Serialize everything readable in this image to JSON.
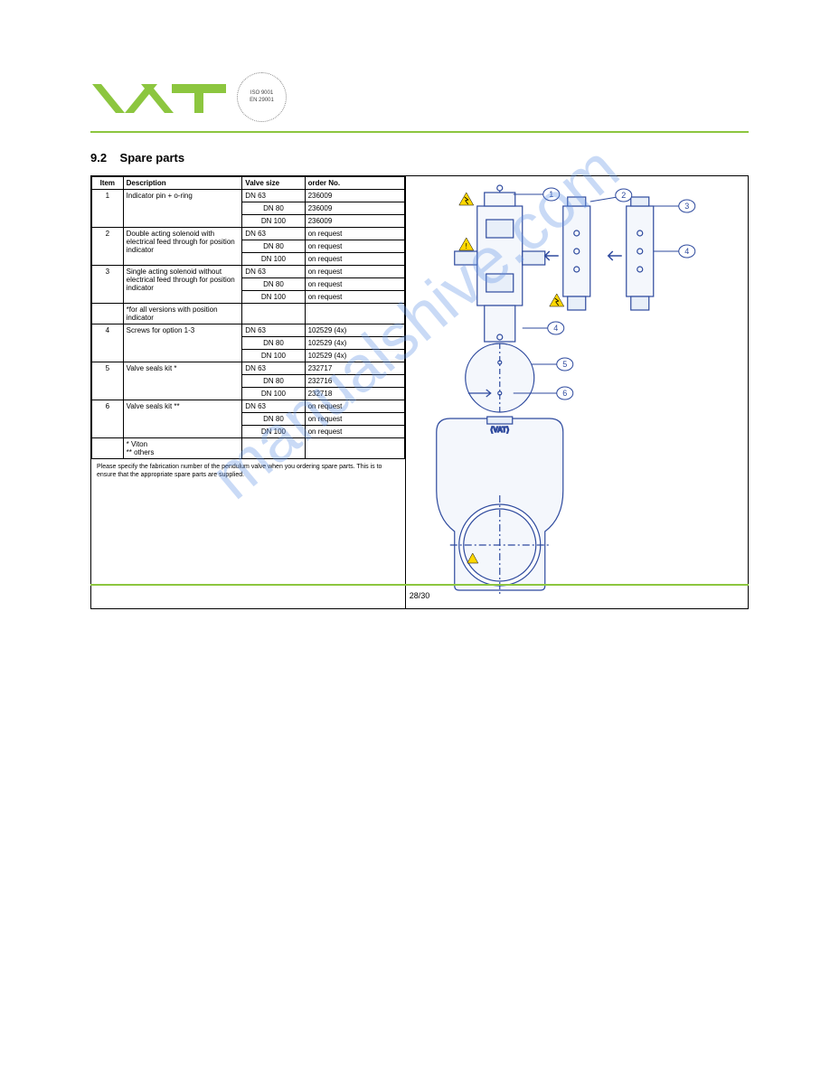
{
  "logo_text": "VAT",
  "logo_color": "#8cc63f",
  "iso_badge": {
    "line1": "ISO 9001",
    "line2": "EN 29001"
  },
  "section_number": "9.2",
  "section_title": "Spare parts",
  "table": {
    "headers": [
      "Item",
      "Description",
      "Valve size",
      "order No."
    ],
    "rows": [
      {
        "item": "1",
        "desc": "Indicator pin + o-ring",
        "sizes": [
          "DN 63",
          "DN 80",
          "DN 100"
        ],
        "orders": [
          "236009",
          "236009",
          "236009"
        ]
      },
      {
        "item": "2",
        "desc": "Double acting solenoid with electrical feed through for position indicator",
        "sizes": [
          "DN 63",
          "DN 80",
          "DN 100"
        ],
        "orders": [
          "on request",
          "on request",
          "on request"
        ]
      },
      {
        "item": "3",
        "desc": "Single acting solenoid without electrical feed through for position indicator",
        "sizes": [
          "DN 63",
          "DN 80",
          "DN 100"
        ],
        "orders": [
          "on request",
          "on request",
          "on request"
        ]
      },
      {
        "item": "",
        "desc": "*for all versions with position indicator",
        "sizes": [
          ""
        ],
        "orders": [
          ""
        ]
      },
      {
        "item": "4",
        "desc": "Screws for option 1-3",
        "sizes": [
          "DN 63",
          "DN 80",
          "DN 100"
        ],
        "orders": [
          "102529 (4x)",
          "102529 (4x)",
          "102529 (4x)"
        ]
      },
      {
        "item": "5",
        "desc": "Valve seals kit *",
        "sizes": [
          "DN 63",
          "DN 80",
          "DN 100"
        ],
        "orders": [
          "232717",
          "232716",
          "232718"
        ]
      },
      {
        "item": "6",
        "desc": "Valve seals kit **",
        "sizes": [
          "DN 63",
          "DN 80",
          "DN 100"
        ],
        "orders": [
          "on request",
          "on request",
          "on request"
        ]
      },
      {
        "item": "",
        "desc": "* Viton\n** others",
        "sizes": [
          ""
        ],
        "orders": [
          ""
        ]
      }
    ]
  },
  "footnote": "Please specify the fabrication number of the pendulum valve when you ordering spare parts. This is to ensure that the appropriate spare parts are supplied.",
  "diagram": {
    "callouts": [
      "1",
      "2",
      "3",
      "4",
      "5",
      "6"
    ],
    "colors": {
      "outline": "#2e4a9e",
      "warning": "#ffd700",
      "light": "#b8c8e8"
    }
  },
  "page_label": "28/30",
  "watermark": "manualshive.com"
}
